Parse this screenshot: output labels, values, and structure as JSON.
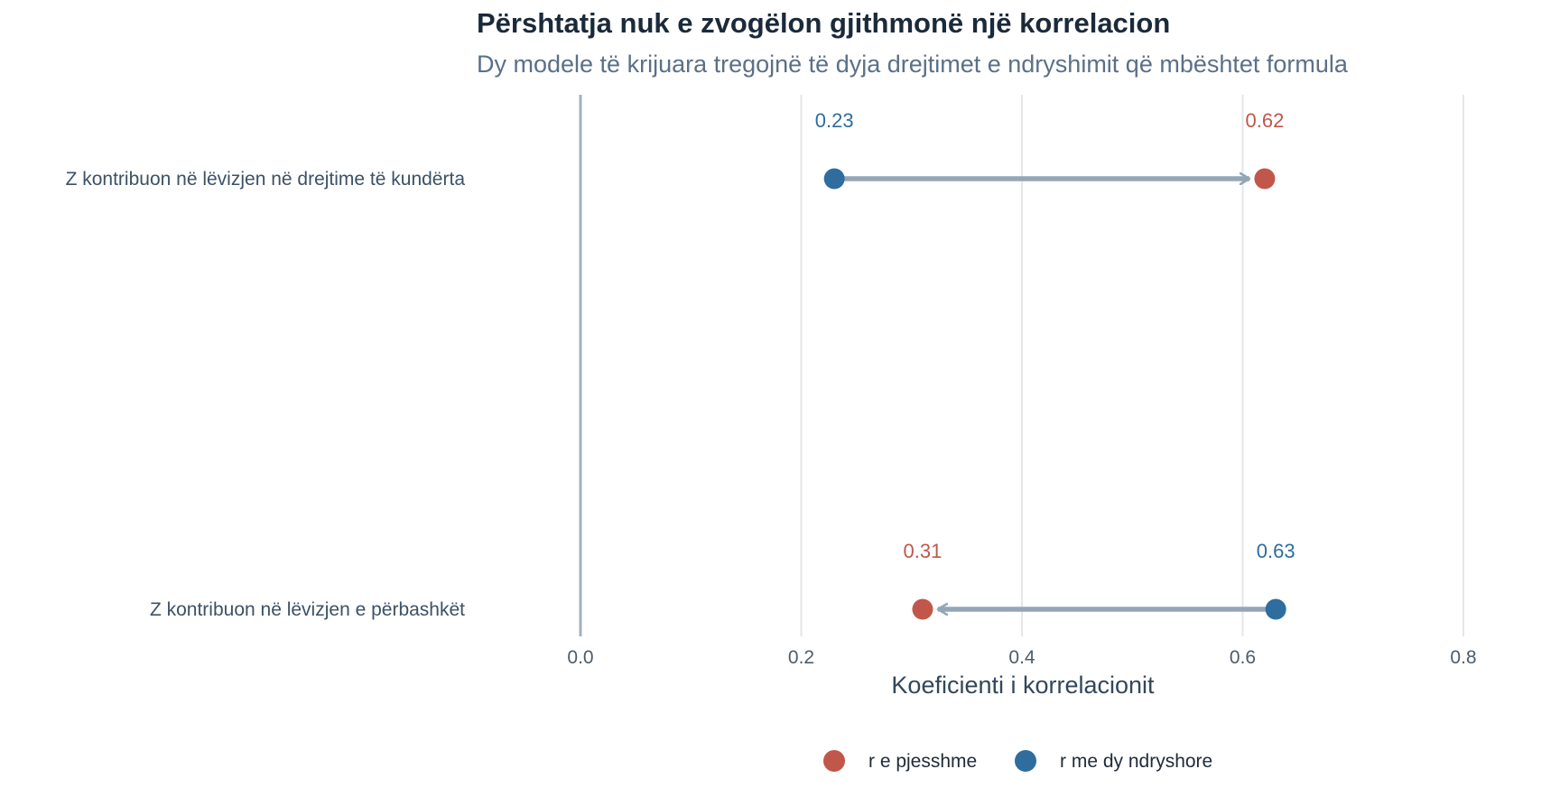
{
  "chart_data": {
    "type": "dumbbell",
    "title": "Përshtatja nuk e zvogëlon gjithmonë një korrelacion",
    "subtitle": "Dy modele të krijuara tregojnë të dyja drejtimet e ndryshimit që mbështet formula",
    "xlabel": "Koeficienti i korrelacionit",
    "ylabel": "",
    "xlim": [
      0.0,
      0.8
    ],
    "x_ticks": [
      0.0,
      0.2,
      0.4,
      0.6,
      0.8
    ],
    "x_tick_labels": [
      "0.0",
      "0.2",
      "0.4",
      "0.6",
      "0.8"
    ],
    "grid": "vertical",
    "legend_position": "bottom",
    "categories": [
      "Z kontribuon në lëvizjen në drejtime të kundërta",
      "Z kontribuon në lëvizjen e përbashkët"
    ],
    "series": [
      {
        "name": "r e pjesshme",
        "color": "#c0574a",
        "values": [
          0.62,
          0.31
        ],
        "labels": [
          "0.62",
          "0.31"
        ]
      },
      {
        "name": "r me dy ndryshore",
        "color": "#2e6d9e",
        "values": [
          0.23,
          0.63
        ],
        "labels": [
          "0.23",
          "0.63"
        ]
      }
    ],
    "arrow_color": "#94a6b6"
  }
}
